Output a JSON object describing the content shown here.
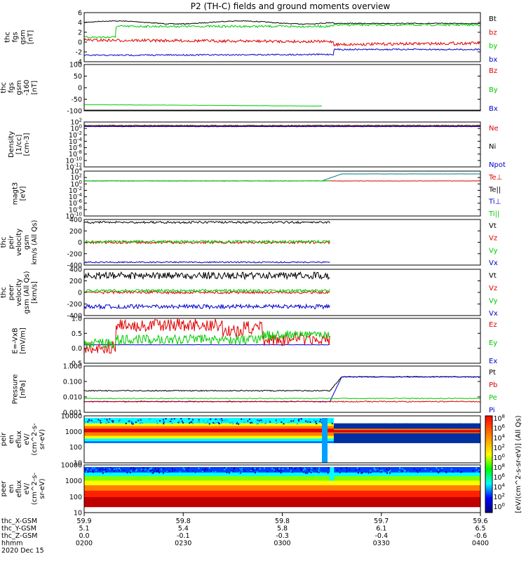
{
  "title": "P2 (TH-C) fields and ground moments overview",
  "colors": {
    "black": "#000000",
    "red": "#e00000",
    "green": "#00cc00",
    "blue": "#0000cc",
    "yellow": "#ffff00",
    "teal": "#008080"
  },
  "chart_data": [
    {
      "type": "line",
      "id": "p1",
      "ylabel": [
        "thc",
        "fgs",
        "gsm",
        "[nT]"
      ],
      "yticks": [
        6,
        4,
        2,
        0,
        -2,
        -4
      ],
      "ylim": [
        -4,
        6
      ],
      "legend": [
        {
          "name": "Bt",
          "color": "black"
        },
        {
          "name": "bz",
          "color": "red"
        },
        {
          "name": "by",
          "color": "green"
        },
        {
          "name": "bx",
          "color": "blue"
        }
      ]
    },
    {
      "type": "line",
      "id": "p2",
      "ylabel": [
        "thc",
        "fgs",
        "gsm",
        "-160",
        "[nT]"
      ],
      "yticks": [
        100,
        50,
        0,
        -50,
        -100
      ],
      "ylim": [
        -125,
        100
      ],
      "legend": [
        {
          "name": "Bz",
          "color": "red"
        },
        {
          "name": "By",
          "color": "green"
        },
        {
          "name": "Bx",
          "color": "blue"
        }
      ]
    },
    {
      "type": "line",
      "id": "p3",
      "ylabel": [
        "Density",
        "[1/cc]",
        "[cm-3]"
      ],
      "yticks": [
        "10^2",
        "10^0",
        "10^-2",
        "10^-4",
        "10^-6",
        "10^-8",
        "10^-10",
        "10^-12"
      ],
      "legend": [
        {
          "name": "Ne",
          "color": "red"
        },
        {
          "name": "Ni",
          "color": "black"
        },
        {
          "name": "Npot",
          "color": "blue"
        }
      ]
    },
    {
      "type": "line",
      "id": "p4",
      "ylabel": [
        "magt3",
        "[eV]"
      ],
      "yticks": [
        "10^4",
        "10^2",
        "10^0",
        "10^-2",
        "10^-4",
        "10^-6",
        "10^-8",
        "10^-10"
      ],
      "legend": [
        {
          "name": "Te⊥",
          "color": "red"
        },
        {
          "name": "Te||",
          "color": "black"
        },
        {
          "name": "Ti⊥",
          "color": "blue"
        },
        {
          "name": "Ti||",
          "color": "green"
        }
      ]
    },
    {
      "type": "line",
      "id": "p5",
      "ylabel": [
        "thc",
        "peir",
        "velocity",
        "gsm",
        "km/s (All Qs)"
      ],
      "yticks": [
        400,
        200,
        0,
        -200,
        -400
      ],
      "ylim": [
        -400,
        400
      ],
      "legend": [
        {
          "name": "Vt",
          "color": "black"
        },
        {
          "name": "Vz",
          "color": "red"
        },
        {
          "name": "Vy",
          "color": "green"
        },
        {
          "name": "Vx",
          "color": "blue"
        }
      ]
    },
    {
      "type": "line",
      "id": "p6",
      "ylabel": [
        "thc",
        "peer",
        "velocity",
        "gsm (All Qs)",
        "[km/s]"
      ],
      "yticks": [
        400,
        200,
        0,
        -200,
        -400
      ],
      "ylim": [
        -400,
        400
      ],
      "legend": [
        {
          "name": "Vt",
          "color": "black"
        },
        {
          "name": "Vz",
          "color": "red"
        },
        {
          "name": "Vy",
          "color": "green"
        },
        {
          "name": "Vx",
          "color": "blue"
        }
      ]
    },
    {
      "type": "line",
      "id": "p7",
      "ylabel": [
        "E=-VxB",
        "[mV/m]"
      ],
      "yticks": [
        "1.0",
        "0.5",
        "0.0",
        "-0.5"
      ],
      "ylim": [
        -0.7,
        1.0
      ],
      "legend": [
        {
          "name": "Ez",
          "color": "red"
        },
        {
          "name": "Ey",
          "color": "green"
        },
        {
          "name": "Ex",
          "color": "blue"
        }
      ]
    },
    {
      "type": "line",
      "id": "p8",
      "ylabel": [
        "Pressure",
        "[nPa]"
      ],
      "yticks": [
        "1.000",
        "0.100",
        "0.010",
        "0.001"
      ],
      "yscale": "log",
      "legend": [
        {
          "name": "Pt",
          "color": "black"
        },
        {
          "name": "Pb",
          "color": "red"
        },
        {
          "name": "Pe",
          "color": "green"
        },
        {
          "name": "Pi",
          "color": "blue"
        }
      ]
    },
    {
      "type": "heatmap",
      "id": "p9",
      "ylabel": [
        "thc",
        "peir",
        "en",
        "eflux",
        "eV/",
        "(cm^2-s-",
        "sr-eV)"
      ],
      "yticks": [
        10000,
        1000,
        100,
        10
      ]
    },
    {
      "type": "heatmap",
      "id": "p10",
      "ylabel": [
        "thc",
        "peer",
        "en",
        "eflux",
        "eV/",
        "(cm^2-s-",
        "sr-eV)"
      ],
      "yticks": [
        10000,
        1000,
        100,
        10
      ]
    }
  ],
  "colorbar": {
    "ticks_top": [
      "10^8",
      "10^6",
      "10^4",
      "10^2",
      "10^0"
    ],
    "ticks_bottom": [
      "10^8",
      "10^6",
      "10^4",
      "10^2",
      "10^0"
    ],
    "label": "[eV/(cm^2-s-sr-eV)] (All Qs)"
  },
  "xaxis": {
    "row_labels": [
      "thc_X-GSM",
      "thc_Y-GSM",
      "thc_Z-GSM",
      "hhmm",
      "2020 Dec 15"
    ],
    "columns": [
      {
        "x": "59.9",
        "y": "5.1",
        "z": "0.0",
        "t": "0200"
      },
      {
        "x": "59.8",
        "y": "5.4",
        "z": "-0.1",
        "t": "0230"
      },
      {
        "x": "59.8",
        "y": "5.8",
        "z": "-0.3",
        "t": "0300"
      },
      {
        "x": "59.7",
        "y": "6.1",
        "z": "-0.4",
        "t": "0330"
      },
      {
        "x": "59.6",
        "y": "6.5",
        "z": "-0.6",
        "t": "0400"
      }
    ]
  }
}
